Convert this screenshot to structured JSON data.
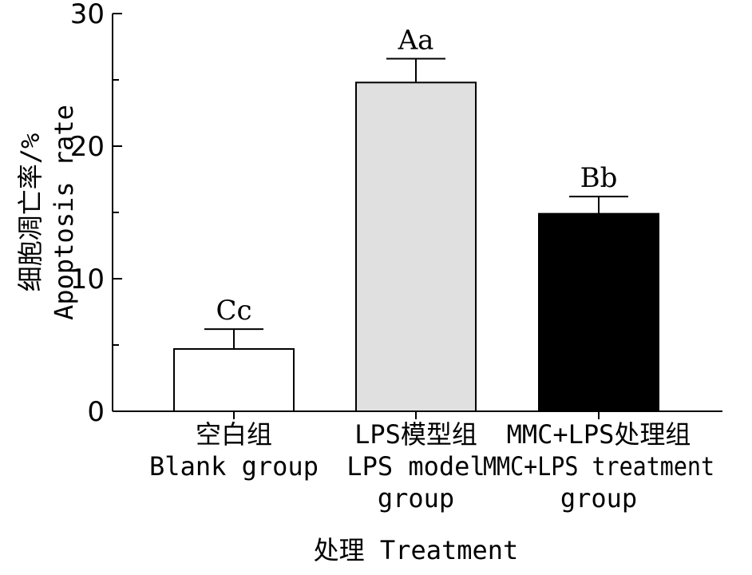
{
  "chart_data": {
    "type": "bar",
    "categories": [
      [
        "空白组",
        "Blank group"
      ],
      [
        "LPS模型组",
        "LPS model",
        "group"
      ],
      [
        "MMC+LPS处理组",
        "MMC+LPS treatment",
        "group"
      ]
    ],
    "values": [
      4.7,
      24.8,
      14.9
    ],
    "errors": [
      1.5,
      1.8,
      1.3
    ],
    "data_labels": [
      "Cc",
      "Aa",
      "Bb"
    ],
    "bar_colors": [
      "#ffffff",
      "#e0e0e0",
      "#000000"
    ],
    "xlabel": "处理 Treatment",
    "ylabel": [
      "细胞凋亡率/%",
      "Apoptosis rate"
    ],
    "ylim": [
      0,
      30
    ],
    "yticks": [
      0,
      10,
      20,
      30
    ],
    "grid": false
  }
}
